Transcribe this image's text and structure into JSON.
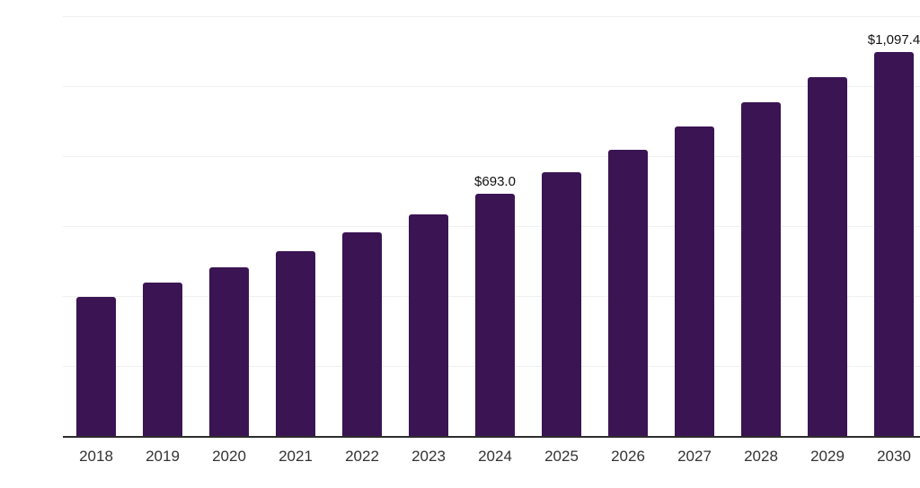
{
  "chart_data": {
    "type": "bar",
    "categories": [
      "2018",
      "2019",
      "2020",
      "2021",
      "2022",
      "2023",
      "2024",
      "2025",
      "2026",
      "2027",
      "2028",
      "2029",
      "2030"
    ],
    "values": [
      398,
      438,
      482,
      529,
      581,
      634,
      693.0,
      755,
      817,
      884,
      953,
      1025,
      1097.4
    ],
    "data_labels": {
      "2024": "$693.0",
      "2030": "$1,097.4"
    },
    "title": "",
    "xlabel": "",
    "ylabel": "",
    "ylim": [
      0,
      1200
    ],
    "gridline_step": 200,
    "grid": "horizontal",
    "legend": "none",
    "y_axis_labels_visible": false,
    "colors": {
      "bar": "#3A1453",
      "axis_line": "#2D2D2D",
      "gridline": "#EFEFEF",
      "tick_text": "#333333",
      "data_label_text": "#111111",
      "background": "#FFFFFF"
    }
  }
}
